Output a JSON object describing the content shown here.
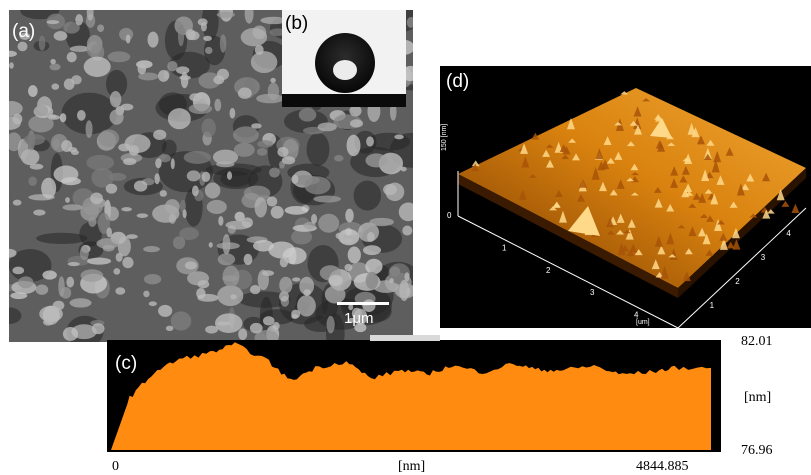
{
  "panels": {
    "a": {
      "label": "(a)",
      "scale_bar": "1μm",
      "colors": {
        "base": "#5e5e5e",
        "light": "#b8b8b8",
        "dark": "#262626"
      }
    },
    "b": {
      "label": "(b)",
      "colors": {
        "droplet": "#0e0e0e",
        "background": "#f2f2f2"
      }
    },
    "c": {
      "label": "(c)",
      "y_max": "82.01",
      "y_unit": "[nm]",
      "y_min": "76.96",
      "x_min": "0",
      "x_unit": "[nm]",
      "x_max": "4844.885",
      "colors": {
        "fill": "#ff8c10",
        "background": "#000000"
      }
    },
    "d": {
      "label": "(d)",
      "z_axis_label": "150 [nm]",
      "x_ticks": [
        "1",
        "2",
        "3",
        "4"
      ],
      "y_ticks": [
        "1",
        "2",
        "3",
        "4"
      ],
      "x_unit": "[um]",
      "colors": {
        "surface_dark": "#7a3a00",
        "surface_mid": "#d9820f",
        "surface_light": "#ffd98a",
        "background": "#000000"
      }
    }
  },
  "chart_data": {
    "type": "area",
    "title": "",
    "xlabel": "[nm]",
    "ylabel": "[nm]",
    "xlim": [
      0,
      4844.885
    ],
    "ylim": [
      76.96,
      82.01
    ],
    "x": [
      0,
      150,
      350,
      550,
      800,
      1000,
      1250,
      1450,
      1650,
      1900,
      2100,
      2350,
      2550,
      2750,
      3000,
      3250,
      3450,
      3650,
      3900,
      4100,
      4350,
      4550,
      4844.885
    ],
    "values": [
      76.96,
      79.4,
      80.6,
      81.2,
      81.5,
      81.9,
      81.2,
      80.2,
      80.8,
      81.1,
      80.3,
      80.7,
      80.5,
      80.9,
      80.6,
      81.0,
      80.7,
      80.7,
      80.9,
      80.5,
      80.6,
      80.8,
      80.8
    ]
  }
}
